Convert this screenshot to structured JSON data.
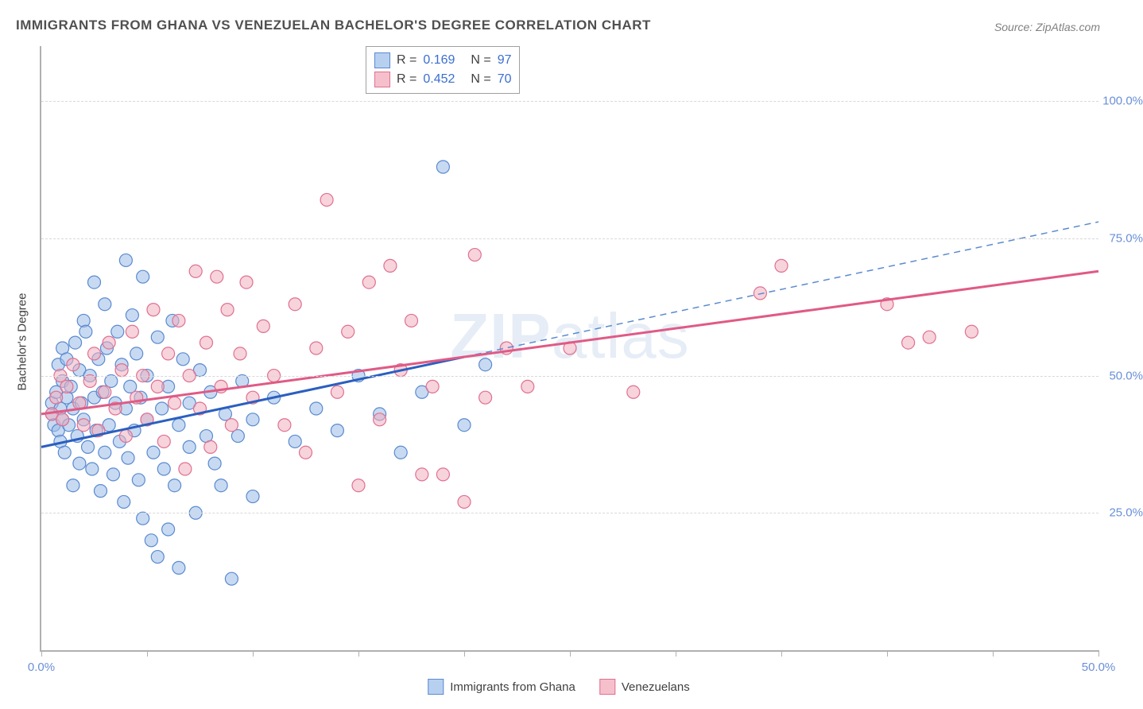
{
  "title": "IMMIGRANTS FROM GHANA VS VENEZUELAN BACHELOR'S DEGREE CORRELATION CHART",
  "source": "Source: ZipAtlas.com",
  "watermark": "ZIPatlas",
  "ylabel": "Bachelor's Degree",
  "chart": {
    "type": "scatter",
    "xlim": [
      0,
      50
    ],
    "ylim": [
      0,
      110
    ],
    "x_ticks": [
      0,
      5,
      10,
      15,
      20,
      25,
      30,
      35,
      40,
      45,
      50
    ],
    "x_tick_labels": {
      "0": "0.0%",
      "50": "50.0%"
    },
    "y_gridlines": [
      25,
      50,
      75,
      100
    ],
    "y_tick_labels": {
      "25": "25.0%",
      "50": "50.0%",
      "75": "75.0%",
      "100": "100.0%"
    },
    "background": "#ffffff",
    "grid_color": "#d8d8d8",
    "axis_color": "#b0b0b0",
    "tick_label_color": "#6a8fd8",
    "marker_radius": 8,
    "series": [
      {
        "key": "ghana",
        "label": "Immigrants from Ghana",
        "color_fill": "#9bbce8",
        "color_stroke": "#5a8ad0",
        "R": 0.169,
        "N": 97,
        "trend": {
          "solid_until_x": 20,
          "y_at_x0": 37,
          "y_at_x50": 78,
          "color": "#2a5fc0",
          "dash_color": "#5a8ad0"
        },
        "points": [
          [
            0.5,
            43
          ],
          [
            0.5,
            45
          ],
          [
            0.6,
            41
          ],
          [
            0.7,
            47
          ],
          [
            0.8,
            40
          ],
          [
            0.8,
            52
          ],
          [
            0.9,
            44
          ],
          [
            0.9,
            38
          ],
          [
            1.0,
            55
          ],
          [
            1.0,
            42
          ],
          [
            1.0,
            49
          ],
          [
            1.1,
            36
          ],
          [
            1.2,
            46
          ],
          [
            1.2,
            53
          ],
          [
            1.3,
            41
          ],
          [
            1.4,
            48
          ],
          [
            1.5,
            30
          ],
          [
            1.5,
            44
          ],
          [
            1.6,
            56
          ],
          [
            1.7,
            39
          ],
          [
            1.8,
            51
          ],
          [
            1.8,
            34
          ],
          [
            1.9,
            45
          ],
          [
            2.0,
            60
          ],
          [
            2.0,
            42
          ],
          [
            2.1,
            58
          ],
          [
            2.2,
            37
          ],
          [
            2.3,
            50
          ],
          [
            2.4,
            33
          ],
          [
            2.5,
            46
          ],
          [
            2.5,
            67
          ],
          [
            2.6,
            40
          ],
          [
            2.7,
            53
          ],
          [
            2.8,
            29
          ],
          [
            2.9,
            47
          ],
          [
            3.0,
            63
          ],
          [
            3.0,
            36
          ],
          [
            3.1,
            55
          ],
          [
            3.2,
            41
          ],
          [
            3.3,
            49
          ],
          [
            3.4,
            32
          ],
          [
            3.5,
            45
          ],
          [
            3.6,
            58
          ],
          [
            3.7,
            38
          ],
          [
            3.8,
            52
          ],
          [
            3.9,
            27
          ],
          [
            4.0,
            44
          ],
          [
            4.0,
            71
          ],
          [
            4.1,
            35
          ],
          [
            4.2,
            48
          ],
          [
            4.3,
            61
          ],
          [
            4.4,
            40
          ],
          [
            4.5,
            54
          ],
          [
            4.6,
            31
          ],
          [
            4.7,
            46
          ],
          [
            4.8,
            24
          ],
          [
            4.8,
            68
          ],
          [
            5.0,
            42
          ],
          [
            5.0,
            50
          ],
          [
            5.2,
            20
          ],
          [
            5.3,
            36
          ],
          [
            5.5,
            57
          ],
          [
            5.5,
            17
          ],
          [
            5.7,
            44
          ],
          [
            5.8,
            33
          ],
          [
            6.0,
            22
          ],
          [
            6.0,
            48
          ],
          [
            6.2,
            60
          ],
          [
            6.3,
            30
          ],
          [
            6.5,
            41
          ],
          [
            6.5,
            15
          ],
          [
            6.7,
            53
          ],
          [
            7.0,
            37
          ],
          [
            7.0,
            45
          ],
          [
            7.3,
            25
          ],
          [
            7.5,
            51
          ],
          [
            7.8,
            39
          ],
          [
            8.0,
            47
          ],
          [
            8.2,
            34
          ],
          [
            8.5,
            30
          ],
          [
            8.7,
            43
          ],
          [
            9.0,
            13
          ],
          [
            9.3,
            39
          ],
          [
            9.5,
            49
          ],
          [
            10,
            42
          ],
          [
            10,
            28
          ],
          [
            11,
            46
          ],
          [
            12,
            38
          ],
          [
            13,
            44
          ],
          [
            14,
            40
          ],
          [
            15,
            50
          ],
          [
            16,
            43
          ],
          [
            17,
            36
          ],
          [
            18,
            47
          ],
          [
            19,
            88
          ],
          [
            20,
            41
          ],
          [
            21,
            52
          ]
        ]
      },
      {
        "key": "venezuela",
        "label": "Venezuelans",
        "color_fill": "#f0aebf",
        "color_stroke": "#e07090",
        "R": 0.452,
        "N": 70,
        "trend": {
          "y_at_x0": 43,
          "y_at_x50": 69,
          "color": "#e05a85"
        },
        "points": [
          [
            0.5,
            43
          ],
          [
            0.7,
            46
          ],
          [
            0.9,
            50
          ],
          [
            1.0,
            42
          ],
          [
            1.2,
            48
          ],
          [
            1.5,
            52
          ],
          [
            1.8,
            45
          ],
          [
            2.0,
            41
          ],
          [
            2.3,
            49
          ],
          [
            2.5,
            54
          ],
          [
            2.7,
            40
          ],
          [
            3.0,
            47
          ],
          [
            3.2,
            56
          ],
          [
            3.5,
            44
          ],
          [
            3.8,
            51
          ],
          [
            4.0,
            39
          ],
          [
            4.3,
            58
          ],
          [
            4.5,
            46
          ],
          [
            4.8,
            50
          ],
          [
            5.0,
            42
          ],
          [
            5.3,
            62
          ],
          [
            5.5,
            48
          ],
          [
            5.8,
            38
          ],
          [
            6.0,
            54
          ],
          [
            6.3,
            45
          ],
          [
            6.5,
            60
          ],
          [
            6.8,
            33
          ],
          [
            7.0,
            50
          ],
          [
            7.3,
            69
          ],
          [
            7.5,
            44
          ],
          [
            7.8,
            56
          ],
          [
            8.0,
            37
          ],
          [
            8.3,
            68
          ],
          [
            8.5,
            48
          ],
          [
            8.8,
            62
          ],
          [
            9.0,
            41
          ],
          [
            9.4,
            54
          ],
          [
            9.7,
            67
          ],
          [
            10,
            46
          ],
          [
            10.5,
            59
          ],
          [
            11,
            50
          ],
          [
            11.5,
            41
          ],
          [
            12,
            63
          ],
          [
            12.5,
            36
          ],
          [
            13,
            55
          ],
          [
            13.5,
            82
          ],
          [
            14,
            47
          ],
          [
            14.5,
            58
          ],
          [
            15,
            30
          ],
          [
            15.5,
            67
          ],
          [
            16,
            42
          ],
          [
            16.5,
            70
          ],
          [
            17,
            51
          ],
          [
            17.5,
            60
          ],
          [
            18,
            32
          ],
          [
            18.5,
            48
          ],
          [
            19,
            32
          ],
          [
            20,
            27
          ],
          [
            20.5,
            72
          ],
          [
            21,
            46
          ],
          [
            22,
            55
          ],
          [
            23,
            48
          ],
          [
            25,
            55
          ],
          [
            28,
            47
          ],
          [
            34,
            65
          ],
          [
            35,
            70
          ],
          [
            40,
            63
          ],
          [
            41,
            56
          ],
          [
            42,
            57
          ],
          [
            44,
            58
          ]
        ]
      }
    ],
    "legend_top": {
      "rows": [
        {
          "swatch": "blue",
          "r_label": "R =",
          "r_value": "0.169",
          "n_label": "N =",
          "n_value": "97"
        },
        {
          "swatch": "pink",
          "r_label": "R =",
          "r_value": "0.452",
          "n_label": "N =",
          "n_value": "70"
        }
      ]
    }
  }
}
